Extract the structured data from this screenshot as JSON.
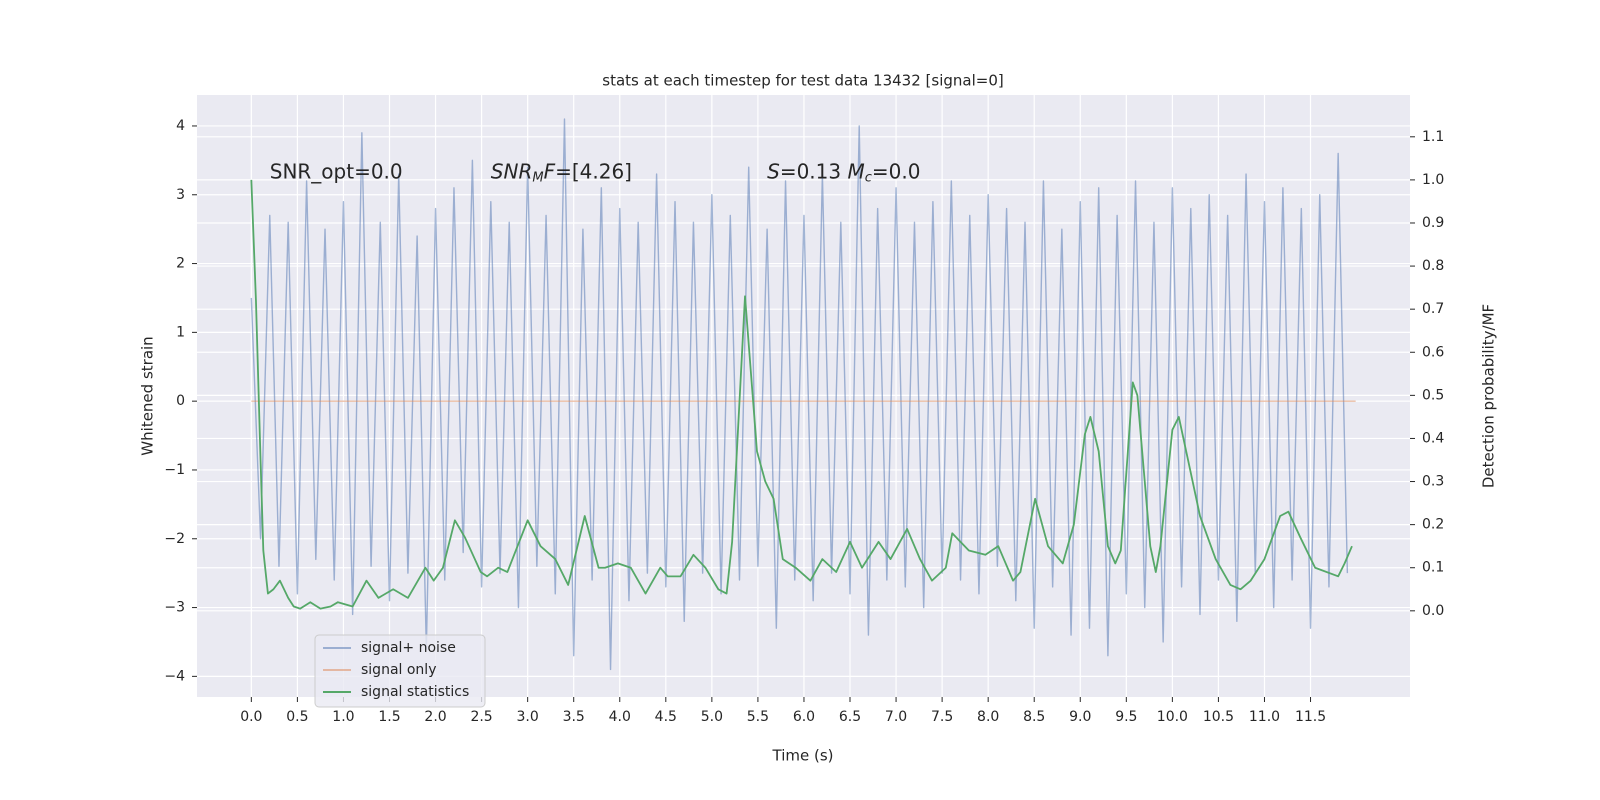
{
  "chart_data": {
    "type": "line",
    "title": "stats at each timestep for test data 13432 [signal=0]",
    "xlabel": "Time (s)",
    "ylabel": "Whitened strain",
    "y2label": "Detection probability/MF",
    "xlim": [
      -0.59,
      12.58
    ],
    "ylim": [
      -4.3,
      4.45
    ],
    "y2lim": [
      -0.2,
      1.197
    ],
    "xticks": [
      {
        "value": 0,
        "label": "0.0"
      },
      0.5,
      {
        "value": 1,
        "label": "1.0"
      },
      1.5,
      {
        "value": 2,
        "label": "2.0"
      },
      2.5,
      {
        "value": 3,
        "label": "3.0"
      },
      3.5,
      {
        "value": 4,
        "label": "4.0"
      },
      4.5,
      {
        "value": 5,
        "label": "5.0"
      },
      5.5,
      {
        "value": 6,
        "label": "6.0"
      },
      6.5,
      {
        "value": 7,
        "label": "7.0"
      },
      7.5,
      {
        "value": 8,
        "label": "8.0"
      },
      8.5,
      {
        "value": 9,
        "label": "9.0"
      },
      9.5,
      {
        "value": 10,
        "label": "10.0"
      },
      10.5,
      {
        "value": 11,
        "label": "11.0"
      },
      11.5
    ],
    "yticks": [
      {
        "value": -4,
        "label": "−4"
      },
      {
        "value": -3,
        "label": "−3"
      },
      {
        "value": -2,
        "label": "−2"
      },
      {
        "value": -1,
        "label": "−1"
      },
      0,
      1,
      2,
      3,
      4
    ],
    "y2ticks": [
      {
        "value": 0,
        "label": "0.0"
      },
      0.1,
      0.2,
      0.3,
      0.4,
      0.5,
      0.6,
      0.7,
      0.8,
      0.9,
      {
        "value": 1,
        "label": "1.0"
      },
      1.1
    ],
    "grid": true,
    "legend": "lower left",
    "annotations": [
      {
        "x": 0.2,
        "y": 3.32,
        "parts": [
          {
            "text": "SNR_opt=0.0",
            "style": "normal"
          }
        ]
      },
      {
        "x": 2.6,
        "y": 3.32,
        "parts": [
          {
            "text": "SNR",
            "style": "italic"
          },
          {
            "text": "M",
            "style": "sub"
          },
          {
            "text": "F",
            "style": "italic"
          },
          {
            "text": "=[4.26]",
            "style": "normal"
          }
        ]
      },
      {
        "x": 5.6,
        "y": 3.32,
        "parts": [
          {
            "text": "S",
            "style": "italic"
          },
          {
            "text": "=0.13   ",
            "style": "normal"
          },
          {
            "text": "M",
            "style": "italic"
          },
          {
            "text": "c",
            "style": "sub"
          },
          {
            "text": "=0.0",
            "style": "normal"
          }
        ]
      }
    ],
    "series": [
      {
        "name": "signal+ noise",
        "color": "#4c72b0",
        "opacity": 0.5,
        "axis": "y",
        "x": [
          0.0,
          0.1,
          0.2,
          0.3,
          0.4,
          0.5,
          0.6,
          0.7,
          0.8,
          0.9,
          1.0,
          1.1,
          1.2,
          1.3,
          1.4,
          1.5,
          1.6,
          1.7,
          1.8,
          1.9,
          2.0,
          2.1,
          2.2,
          2.3,
          2.4,
          2.5,
          2.6,
          2.7,
          2.8,
          2.9,
          3.0,
          3.1,
          3.2,
          3.3,
          3.4,
          3.5,
          3.6,
          3.7,
          3.8,
          3.9,
          4.0,
          4.1,
          4.2,
          4.3,
          4.4,
          4.5,
          4.6,
          4.7,
          4.8,
          4.9,
          5.0,
          5.1,
          5.2,
          5.3,
          5.4,
          5.5,
          5.6,
          5.7,
          5.8,
          5.9,
          6.0,
          6.1,
          6.2,
          6.3,
          6.4,
          6.5,
          6.6,
          6.7,
          6.8,
          6.9,
          7.0,
          7.1,
          7.2,
          7.3,
          7.4,
          7.5,
          7.6,
          7.7,
          7.8,
          7.9,
          8.0,
          8.1,
          8.2,
          8.3,
          8.4,
          8.5,
          8.6,
          8.7,
          8.8,
          8.9,
          9.0,
          9.1,
          9.2,
          9.3,
          9.4,
          9.5,
          9.6,
          9.7,
          9.8,
          9.9,
          10.0,
          10.1,
          10.2,
          10.3,
          10.4,
          10.5,
          10.6,
          10.7,
          10.8,
          10.9,
          11.0,
          11.1,
          11.2,
          11.3,
          11.4,
          11.5,
          11.6,
          11.7,
          11.8,
          11.9
        ],
        "values": [
          1.5,
          -2.0,
          2.7,
          -2.4,
          2.6,
          -2.8,
          3.2,
          -2.3,
          2.5,
          -2.6,
          2.9,
          -3.1,
          3.9,
          -2.4,
          2.6,
          -2.9,
          3.3,
          -2.5,
          2.4,
          -3.6,
          2.8,
          -2.6,
          3.1,
          -2.2,
          3.5,
          -2.7,
          2.9,
          -2.5,
          2.6,
          -3.0,
          3.4,
          -2.4,
          2.7,
          -2.8,
          4.1,
          -3.7,
          2.5,
          -2.6,
          3.1,
          -3.9,
          2.8,
          -2.9,
          2.6,
          -2.5,
          3.3,
          -2.7,
          2.9,
          -3.2,
          2.6,
          -2.5,
          3.0,
          -2.8,
          2.7,
          -2.6,
          3.4,
          -2.4,
          2.5,
          -3.3,
          3.2,
          -2.6,
          2.7,
          -2.9,
          3.3,
          -2.5,
          2.6,
          -2.8,
          4.0,
          -3.4,
          2.8,
          -2.6,
          3.1,
          -2.7,
          2.6,
          -3.0,
          2.9,
          -2.5,
          3.2,
          -2.6,
          2.7,
          -2.8,
          3.0,
          -2.4,
          2.8,
          -2.9,
          2.6,
          -3.3,
          3.2,
          -2.7,
          2.5,
          -3.4,
          2.9,
          -3.3,
          3.1,
          -3.7,
          2.7,
          -2.8,
          3.2,
          -3.0,
          2.6,
          -3.5,
          3.1,
          -2.7,
          2.8,
          -3.1,
          3.0,
          -2.6,
          2.7,
          -3.2,
          3.3,
          -2.5,
          2.9,
          -3.0,
          3.1,
          -2.6,
          2.8,
          -3.3,
          3.0,
          -2.7,
          3.6,
          -2.5
        ]
      },
      {
        "name": "signal only",
        "color": "#dd8452",
        "opacity": 0.5,
        "axis": "y",
        "x": [
          0.0,
          11.99
        ],
        "values": [
          0,
          0
        ]
      },
      {
        "name": "signal statistics",
        "color": "#55a868",
        "opacity": 1,
        "axis": "y2",
        "x": [
          0,
          0.05,
          0.1,
          0.13,
          0.18,
          0.24,
          0.31,
          0.4,
          0.46,
          0.53,
          0.64,
          0.75,
          0.86,
          0.94,
          1.1,
          1.25,
          1.38,
          1.54,
          1.7,
          1.89,
          1.98,
          2.08,
          2.21,
          2.32,
          2.49,
          2.56,
          2.68,
          2.78,
          3.0,
          3.14,
          3.3,
          3.44,
          3.62,
          3.77,
          3.84,
          3.98,
          4.12,
          4.28,
          4.44,
          4.52,
          4.66,
          4.8,
          4.93,
          5.07,
          5.16,
          5.22,
          5.36,
          5.49,
          5.58,
          5.67,
          5.77,
          5.91,
          6.07,
          6.2,
          6.35,
          6.5,
          6.63,
          6.81,
          6.94,
          7.12,
          7.26,
          7.39,
          7.54,
          7.61,
          7.79,
          7.97,
          8.11,
          8.27,
          8.35,
          8.51,
          8.65,
          8.81,
          8.93,
          9.05,
          9.11,
          9.2,
          9.3,
          9.38,
          9.44,
          9.57,
          9.62,
          9.76,
          9.82,
          9.87,
          10.0,
          10.07,
          10.17,
          10.3,
          10.47,
          10.63,
          10.74,
          10.85,
          11.0,
          11.17,
          11.26,
          11.39,
          11.55,
          11.8,
          11.87,
          11.95
        ],
        "values": [
          1.0,
          0.72,
          0.35,
          0.14,
          0.04,
          0.05,
          0.07,
          0.03,
          0.01,
          0.005,
          0.02,
          0.005,
          0.01,
          0.02,
          0.01,
          0.07,
          0.03,
          0.05,
          0.03,
          0.1,
          0.07,
          0.1,
          0.21,
          0.17,
          0.09,
          0.08,
          0.1,
          0.09,
          0.21,
          0.15,
          0.12,
          0.06,
          0.22,
          0.1,
          0.1,
          0.11,
          0.1,
          0.04,
          0.1,
          0.08,
          0.08,
          0.13,
          0.1,
          0.05,
          0.04,
          0.16,
          0.73,
          0.37,
          0.3,
          0.26,
          0.12,
          0.1,
          0.07,
          0.12,
          0.09,
          0.16,
          0.1,
          0.16,
          0.12,
          0.19,
          0.12,
          0.07,
          0.1,
          0.18,
          0.14,
          0.13,
          0.15,
          0.07,
          0.09,
          0.26,
          0.15,
          0.11,
          0.2,
          0.41,
          0.45,
          0.37,
          0.15,
          0.11,
          0.14,
          0.53,
          0.5,
          0.15,
          0.09,
          0.15,
          0.42,
          0.45,
          0.35,
          0.22,
          0.12,
          0.06,
          0.05,
          0.07,
          0.12,
          0.22,
          0.23,
          0.17,
          0.1,
          0.08,
          0.11,
          0.15
        ]
      }
    ]
  }
}
